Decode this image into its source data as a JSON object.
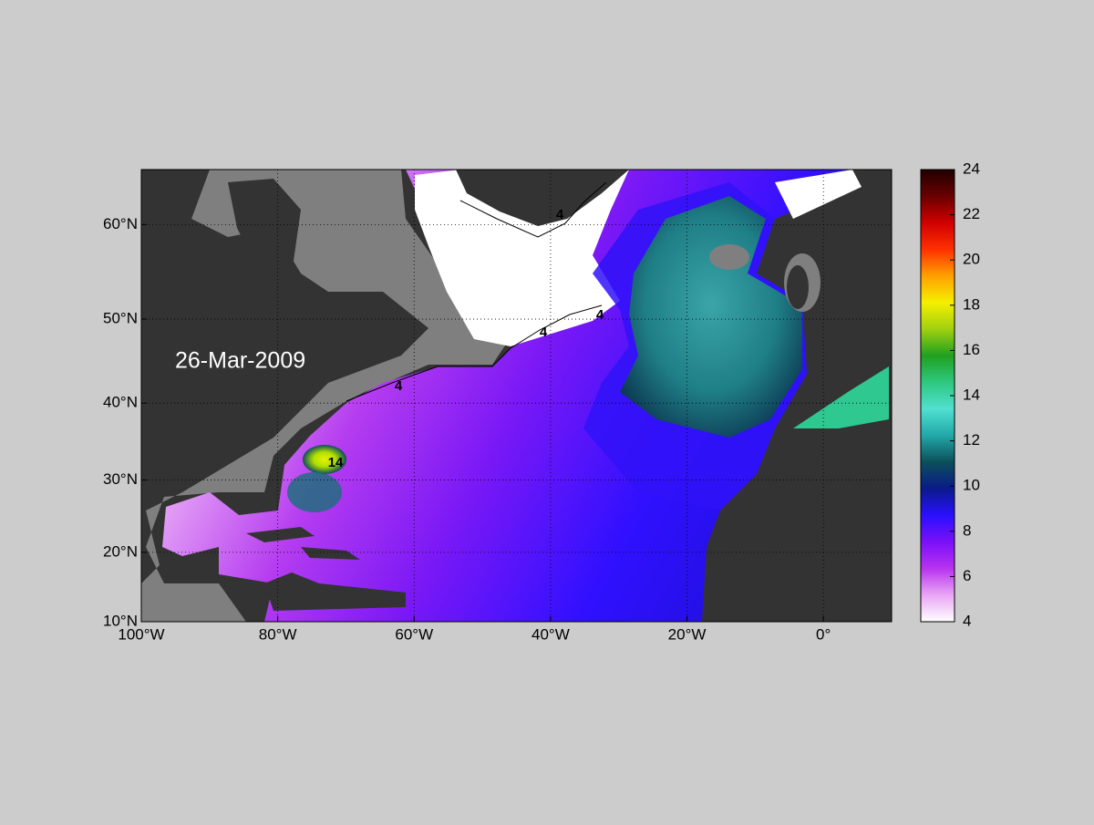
{
  "map": {
    "date_label": "26-Mar-2009",
    "xlim": [
      -100,
      10
    ],
    "ylim": [
      10,
      65.2
    ],
    "xticks": [
      {
        "value": -100,
        "label": "100°W"
      },
      {
        "value": -80,
        "label": "80°W"
      },
      {
        "value": -60,
        "label": "60°W"
      },
      {
        "value": -40,
        "label": "40°W"
      },
      {
        "value": -20,
        "label": "20°W"
      },
      {
        "value": 0,
        "label": "0°"
      }
    ],
    "yticks": [
      {
        "value": 10,
        "label": "10°N"
      },
      {
        "value": 20,
        "label": "20°N"
      },
      {
        "value": 30,
        "label": "30°N"
      },
      {
        "value": 40,
        "label": "40°N"
      },
      {
        "value": 50,
        "label": "50°N"
      },
      {
        "value": 60,
        "label": "60°N"
      }
    ],
    "grid": true,
    "contour_labels": [
      "4",
      "4",
      "4",
      "4",
      "14"
    ],
    "colorbar": {
      "lim": [
        4,
        24
      ],
      "ticks": [
        4,
        6,
        8,
        10,
        12,
        14,
        16,
        18,
        20,
        22,
        24
      ],
      "colors": [
        "#ffffff",
        "#e9a6f5",
        "#b833f0",
        "#7a10f8",
        "#2a10ff",
        "#0a1a8a",
        "#0b4f5a",
        "#22a8a8",
        "#50e0d0",
        "#2ec880",
        "#20a020",
        "#a0d010",
        "#f5f000",
        "#ffa000",
        "#ff3000",
        "#d00000",
        "#6a0000",
        "#200000"
      ]
    }
  }
}
